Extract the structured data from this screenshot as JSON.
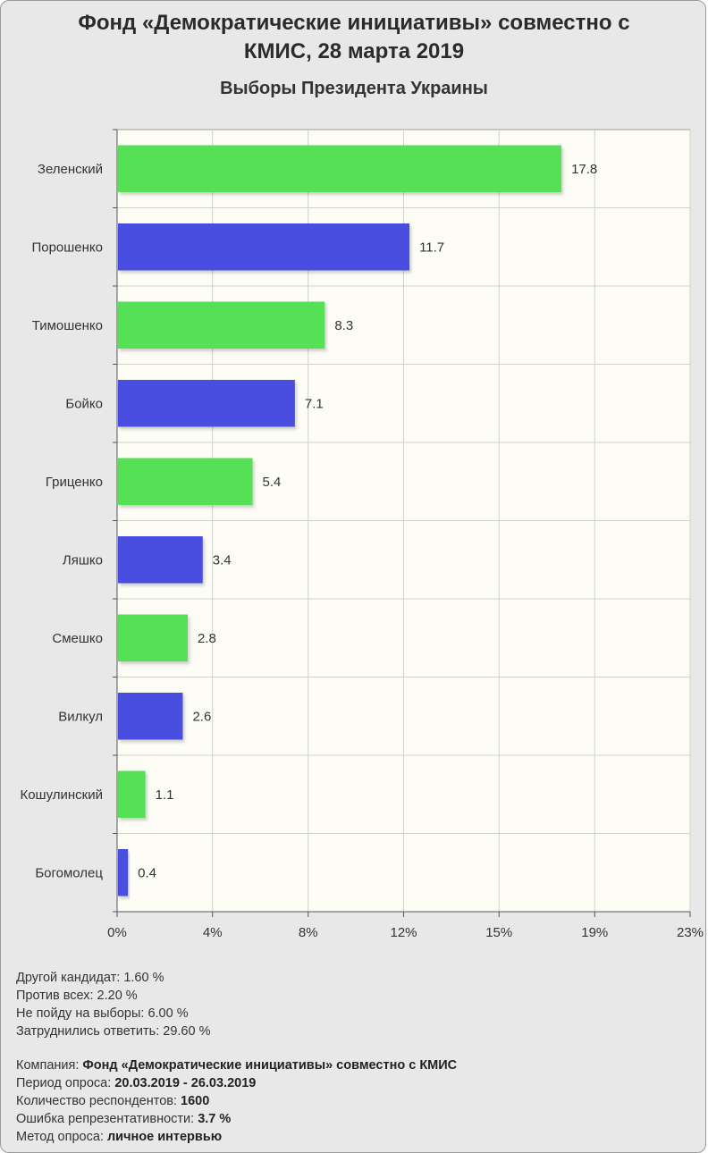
{
  "header": {
    "title_line1": "Фонд «Демократические инициативы» совместно с",
    "title_line2": "КМИС, 28 марта 2019"
  },
  "chart_data": {
    "type": "bar",
    "orientation": "horizontal",
    "title": "Выборы Президента Украины",
    "categories": [
      "Зеленский",
      "Порошенко",
      "Тимошенко",
      "Бойко",
      "Гриценко",
      "Ляшко",
      "Смешко",
      "Вилкул",
      "Кошулинский",
      "Богомолец"
    ],
    "values": [
      17.8,
      11.7,
      8.3,
      7.1,
      5.4,
      3.4,
      2.8,
      2.6,
      1.1,
      0.4
    ],
    "value_labels": [
      "17.8",
      "11.7",
      "8.3",
      "7.1",
      "5.4",
      "3.4",
      "2.8",
      "2.6",
      "1.1",
      "0.4"
    ],
    "bar_colors": [
      "#55e055",
      "#4a4ee0",
      "#55e055",
      "#4a4ee0",
      "#55e055",
      "#4a4ee0",
      "#55e055",
      "#4a4ee0",
      "#55e055",
      "#4a4ee0"
    ],
    "xlim": [
      0,
      23
    ],
    "x_ticks": [
      0,
      3.83,
      7.67,
      11.5,
      15.33,
      19.17,
      23
    ],
    "x_tick_labels": [
      "0%",
      "4%",
      "8%",
      "12%",
      "15%",
      "19%",
      "23%"
    ],
    "grid": true
  },
  "notes": [
    "Другой кандидат: 1.60 %",
    "Против всех: 2.20 %",
    "Не пойду на выборы: 6.00 %",
    "Затруднились ответить: 29.60 %"
  ],
  "meta": [
    {
      "label": "Компания: ",
      "value": "Фонд «Демократические инициативы» совместно с КМИС"
    },
    {
      "label": "Период опроса: ",
      "value": "20.03.2019 - 26.03.2019"
    },
    {
      "label": "Количество респондентов: ",
      "value": "1600"
    },
    {
      "label": "Ошибка репрезентативности: ",
      "value": "3.7 %"
    },
    {
      "label": "Метод опроса: ",
      "value": "личное интервью"
    }
  ]
}
